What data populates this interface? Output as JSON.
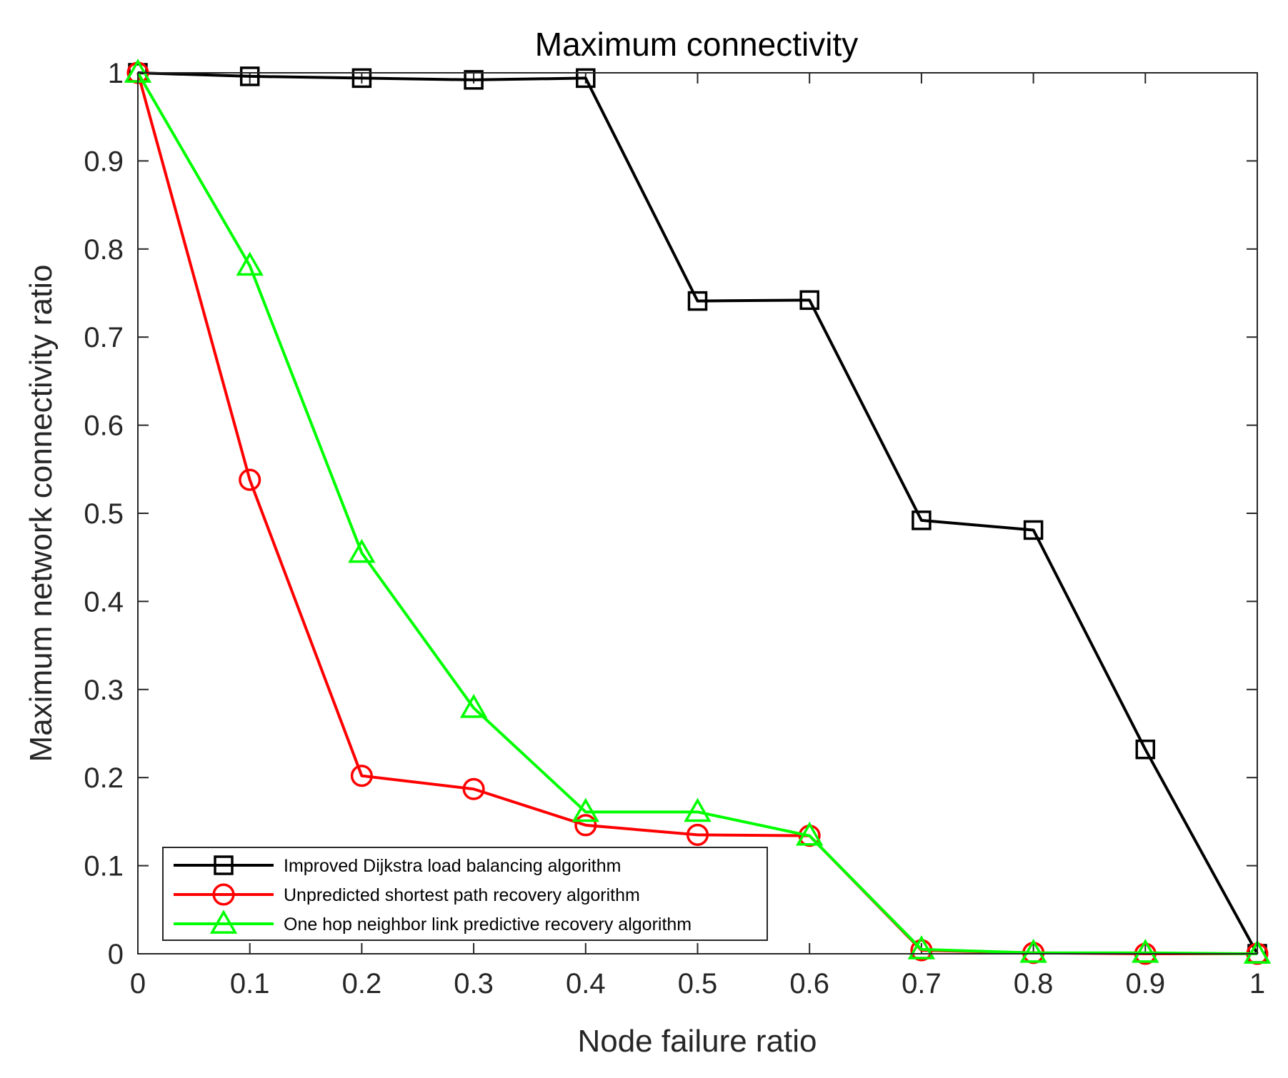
{
  "chart_data": {
    "type": "line",
    "title": "Maximum connectivity",
    "xlabel": "Node failure ratio",
    "ylabel": "Maximum network connectivity ratio",
    "xlim": [
      0,
      1
    ],
    "ylim": [
      0,
      1
    ],
    "x": [
      0,
      0.1,
      0.2,
      0.3,
      0.4,
      0.5,
      0.6,
      0.7,
      0.8,
      0.9,
      1
    ],
    "x_tick_labels": [
      "0",
      "0.1",
      "0.2",
      "0.3",
      "0.4",
      "0.5",
      "0.6",
      "0.7",
      "0.8",
      "0.9",
      "1"
    ],
    "y_ticks": [
      0,
      0.1,
      0.2,
      0.3,
      0.4,
      0.5,
      0.6,
      0.7,
      0.8,
      0.9,
      1
    ],
    "y_tick_labels": [
      "0",
      "0.1",
      "0.2",
      "0.3",
      "0.4",
      "0.5",
      "0.6",
      "0.7",
      "0.8",
      "0.9",
      "1"
    ],
    "grid": false,
    "legend_position": "bottom-left",
    "series": [
      {
        "name": "Improved Dijkstra load balancing algorithm",
        "color": "#000000",
        "marker": "square",
        "values": [
          1.0,
          0.996,
          0.994,
          0.992,
          0.994,
          0.741,
          0.742,
          0.492,
          0.481,
          0.232,
          0.0
        ]
      },
      {
        "name": "Unpredicted shortest path recovery algorithm",
        "color": "#ff0000",
        "marker": "circle",
        "values": [
          1.0,
          0.538,
          0.202,
          0.187,
          0.146,
          0.135,
          0.134,
          0.004,
          0.001,
          0.0,
          0.0
        ]
      },
      {
        "name": "One hop neighbor link predictive recovery algorithm",
        "color": "#00ff00",
        "marker": "triangle",
        "values": [
          1.0,
          0.781,
          0.455,
          0.279,
          0.161,
          0.161,
          0.134,
          0.005,
          0.001,
          0.001,
          0.0
        ]
      }
    ]
  }
}
